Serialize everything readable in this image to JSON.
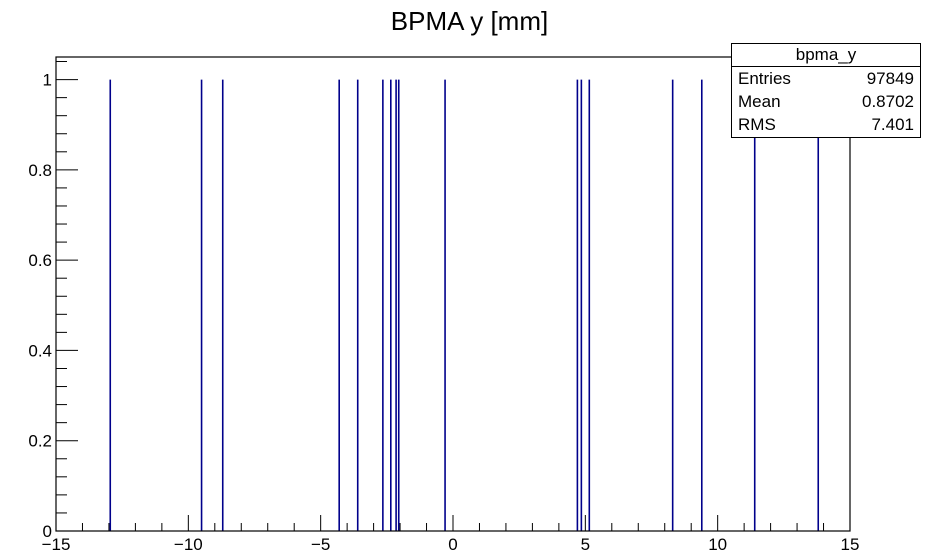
{
  "chart_data": {
    "type": "histogram",
    "title": "BPMA y [mm]",
    "xlim": [
      -15,
      15
    ],
    "ylim": [
      0,
      1.05
    ],
    "x_ticks": [
      -15,
      -10,
      -5,
      0,
      5,
      10,
      15
    ],
    "y_ticks": [
      0,
      0.2,
      0.4,
      0.6,
      0.8,
      1
    ],
    "x_tick_labels": [
      "−15",
      "−10",
      "−5",
      "0",
      "5",
      "10",
      "15"
    ],
    "y_tick_labels": [
      "0",
      "0.2",
      "0.4",
      "0.6",
      "0.8",
      "1"
    ],
    "series": [
      {
        "x": [
          -12.95,
          -9.5,
          -8.7,
          -4.3,
          -3.6,
          -2.65,
          -2.35,
          -2.15,
          -2.05,
          -0.3,
          4.7,
          4.85,
          5.15,
          8.3,
          9.4,
          11.4,
          13.8
        ],
        "y": [
          1,
          1,
          1,
          1,
          1,
          1,
          1,
          1,
          1,
          1,
          1,
          1,
          1,
          1,
          1,
          1,
          1
        ]
      }
    ],
    "colors": {
      "line": "#00008b",
      "axis": "#000000"
    },
    "stats": {
      "name": "bpma_y",
      "rows": [
        {
          "label": "Entries",
          "value": "97849"
        },
        {
          "label": "Mean",
          "value": "0.8702"
        },
        {
          "label": "RMS",
          "value": "7.401"
        }
      ]
    }
  }
}
